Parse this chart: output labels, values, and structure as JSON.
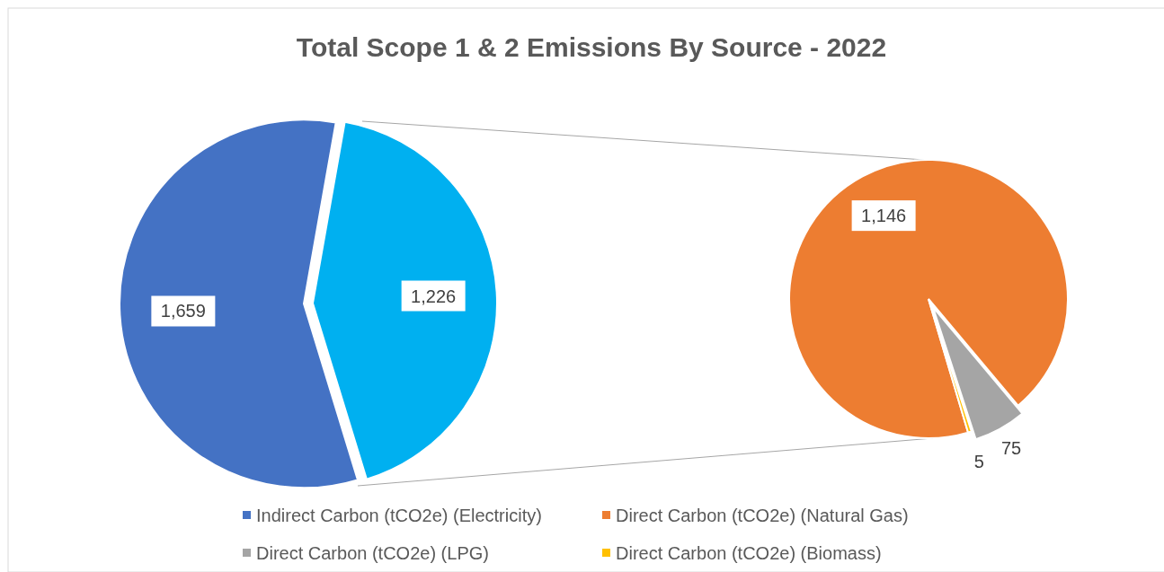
{
  "chart_data": [
    {
      "type": "pie",
      "title": "Total Scope 1 & 2 Emissions By Source - 2022",
      "categories": [
        "Indirect Carbon (tCO2e) (Electricity)",
        null
      ],
      "values": [
        1659,
        1226
      ],
      "colors": [
        "#4472c4",
        "#00b0f0"
      ],
      "value_labels": [
        "1,659",
        "1,226"
      ],
      "legend": "bottom"
    },
    {
      "type": "pie",
      "categories": [
        "Direct Carbon (tCO2e) (Natural Gas)",
        "Direct Carbon (tCO2e) (LPG)",
        "Direct Carbon (tCO2e) (Biomass)"
      ],
      "values": [
        1146,
        75,
        5
      ],
      "colors": [
        "#ed7d31",
        "#a5a5a5",
        "#ffc000"
      ],
      "value_labels": [
        "1,146",
        "75",
        "5"
      ],
      "legend": "bottom"
    }
  ]
}
